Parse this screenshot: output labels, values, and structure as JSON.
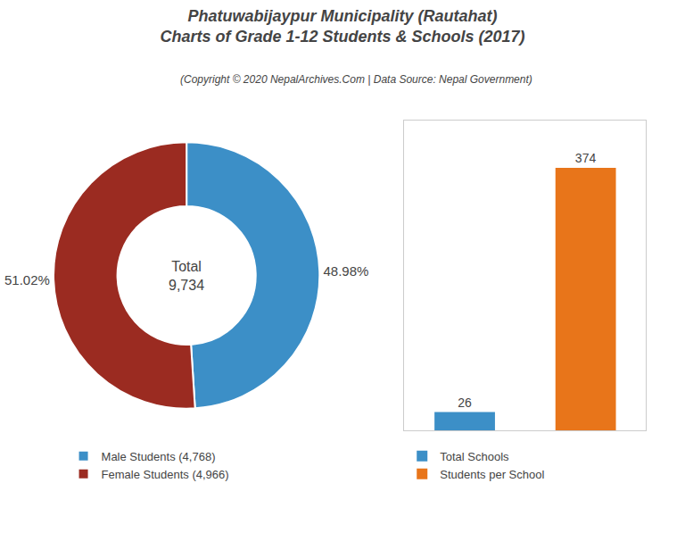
{
  "chart_data": [
    {
      "type": "donut",
      "title": "Phatuwabijaypur Municipality (Rautahat)\nCharts of Grade 1-12 Students & Schools (2017)",
      "subtitle": "(Copyright © 2020 NepalArchives.Com | Data Source: Nepal Government)",
      "categories": [
        "Male Students (4,768)",
        "Female Students (4,966)"
      ],
      "values": [
        48.98,
        51.02
      ],
      "value_labels": [
        "48.98%",
        "51.02%"
      ],
      "colors": [
        "#3c8fc7",
        "#9b2b21"
      ],
      "data_labels": true,
      "annotations": [
        "Total\n9,734"
      ],
      "legend": "bottom"
    },
    {
      "type": "bar",
      "categories": [
        "Total Schools",
        "Students per School"
      ],
      "values": [
        26,
        374
      ],
      "colors": [
        "#3c8fc7",
        "#e8751a"
      ],
      "ylim": [
        0,
        441.32
      ],
      "tick_labels": false,
      "grid": false,
      "data_labels": true,
      "legend": "bottom"
    }
  ]
}
